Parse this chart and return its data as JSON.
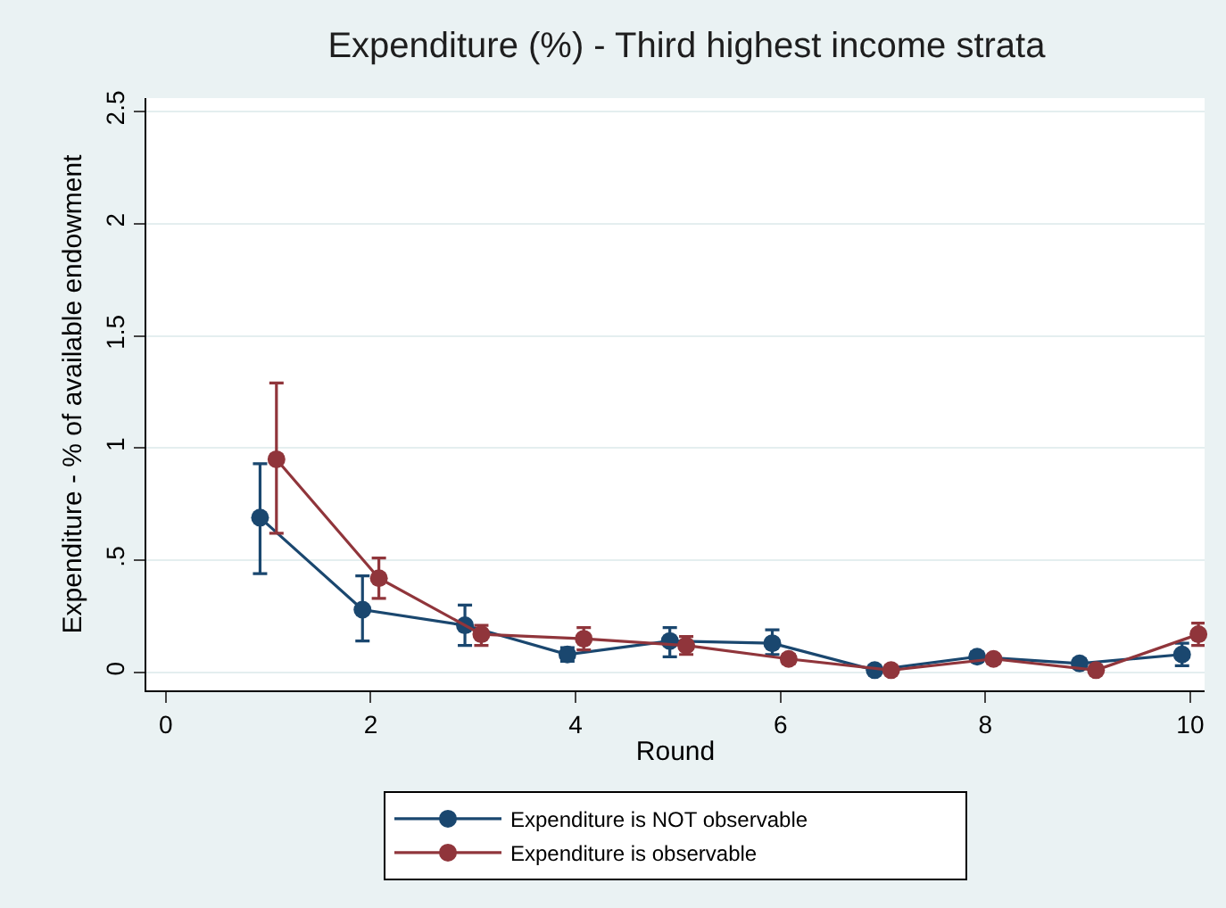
{
  "chart_data": {
    "type": "line",
    "title": "Expenditure (%) - Third highest income strata",
    "xlabel": "Round",
    "ylabel": "Expenditure - % of available endowment",
    "xlim": [
      -0.19,
      10.14
    ],
    "xticks": [
      0,
      2,
      4,
      6,
      8,
      10
    ],
    "ylim": [
      -0.08,
      2.56
    ],
    "yticks": [
      0,
      {
        "value": 0.5,
        "label": ".5"
      },
      1,
      1.5,
      2,
      2.5
    ],
    "grid": "y",
    "legend": "bottom",
    "marker": "circle",
    "line_style": "solid",
    "series": [
      {
        "name": "Expenditure is NOT observable",
        "color": "#1a476f",
        "x": [
          0.92,
          1.92,
          2.92,
          3.92,
          4.92,
          5.92,
          6.92,
          7.92,
          8.92,
          9.92
        ],
        "values": [
          0.69,
          0.28,
          0.21,
          0.08,
          0.14,
          0.13,
          0.01,
          0.07,
          0.04,
          0.08
        ],
        "errors": [
          [
            0.44,
            0.93
          ],
          [
            0.14,
            0.43
          ],
          [
            0.12,
            0.3
          ],
          [
            0.05,
            0.11
          ],
          [
            0.07,
            0.2
          ],
          [
            0.08,
            0.19
          ],
          null,
          [
            0.05,
            0.09
          ],
          [
            0.02,
            0.06
          ],
          [
            0.03,
            0.13
          ]
        ]
      },
      {
        "name": "Expenditure is observable",
        "color": "#90353b",
        "x": [
          1.08,
          2.08,
          3.08,
          4.08,
          5.08,
          6.08,
          7.08,
          8.08,
          9.08,
          10.08
        ],
        "values": [
          0.95,
          0.42,
          0.17,
          0.15,
          0.12,
          0.06,
          0.01,
          0.06,
          0.01,
          0.17
        ],
        "errors": [
          [
            0.62,
            1.29
          ],
          [
            0.33,
            0.51
          ],
          [
            0.12,
            0.21
          ],
          [
            0.1,
            0.2
          ],
          [
            0.08,
            0.16
          ],
          [
            0.04,
            0.08
          ],
          null,
          [
            0.04,
            0.07
          ],
          null,
          [
            0.12,
            0.22
          ]
        ]
      }
    ]
  }
}
